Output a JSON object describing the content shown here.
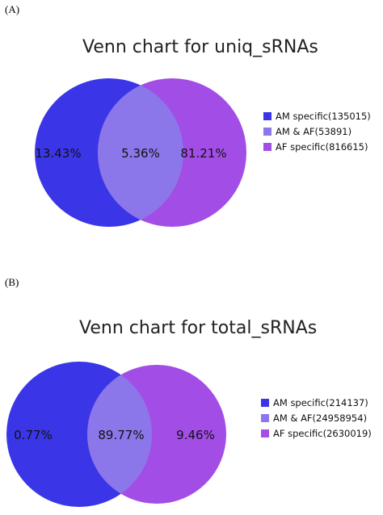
{
  "colors": {
    "am_specific": "#3a36e8",
    "overlap": "#8b77ea",
    "af_specific": "#a24ee6"
  },
  "panels": [
    {
      "letter": "(A)",
      "title": "Venn chart for uniq_sRNAs",
      "labels": {
        "left": "13.43%",
        "center": "5.36%",
        "right": "81.21%"
      },
      "legend": [
        {
          "label": "AM specific(135015)",
          "color_key": "am_specific"
        },
        {
          "label": "AM & AF(53891)",
          "color_key": "overlap"
        },
        {
          "label": "AF specific(816615)",
          "color_key": "af_specific"
        }
      ]
    },
    {
      "letter": "(B)",
      "title": "Venn chart for total_sRNAs",
      "labels": {
        "left": "0.77%",
        "center": "89.77%",
        "right": "9.46%"
      },
      "legend": [
        {
          "label": "AM specific(214137)",
          "color_key": "am_specific"
        },
        {
          "label": "AM & AF(24958954)",
          "color_key": "overlap"
        },
        {
          "label": "AF specific(2630019)",
          "color_key": "af_specific"
        }
      ]
    }
  ]
}
